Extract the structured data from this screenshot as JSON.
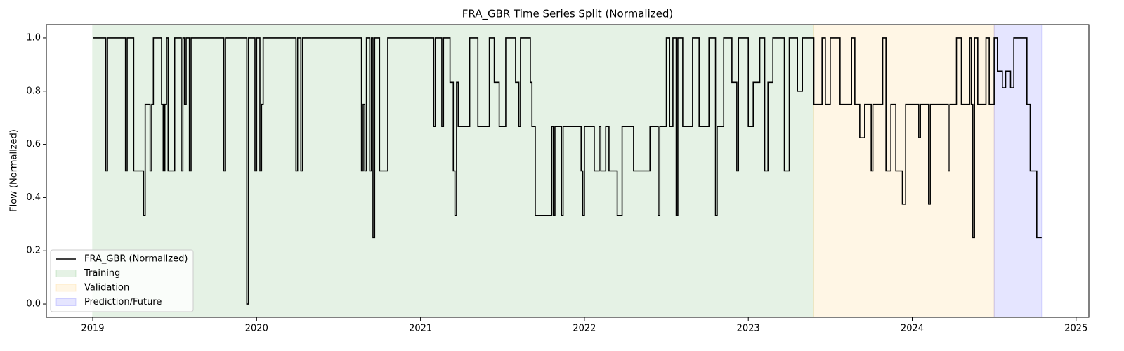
{
  "chart_data": {
    "type": "line",
    "title": "FRA_GBR Time Series Split (Normalized)",
    "ylabel": "Flow (Normalized)",
    "drawstyle": "steps-post",
    "xlim": [
      2018.717,
      2025.078
    ],
    "xticks": [
      2019,
      2020,
      2021,
      2022,
      2023,
      2024,
      2025
    ],
    "ylim": [
      -0.05,
      1.05
    ],
    "yticks": [
      {
        "value": 0,
        "label": "0.0"
      },
      {
        "value": 0.2,
        "label": "0.2"
      },
      {
        "value": 0.4,
        "label": "0.4"
      },
      {
        "value": 0.6,
        "label": "0.6"
      },
      {
        "value": 0.8,
        "label": "0.8"
      },
      {
        "value": 1,
        "label": "1.0"
      }
    ],
    "legend": "lower left",
    "regions": [
      {
        "name": "Training",
        "start": 2019.0,
        "end": 2023.398,
        "color": "#008000",
        "alpha": 0.1
      },
      {
        "name": "Validation",
        "start": 2023.398,
        "end": 2024.5,
        "color": "#ffa500",
        "alpha": 0.1
      },
      {
        "name": "Prediction/Future",
        "start": 2024.5,
        "end": 2024.79,
        "color": "#0000ff",
        "alpha": 0.1
      }
    ],
    "series": [
      {
        "name": "FRA_GBR (Normalized)",
        "color": "#000000",
        "x": [
          2019.0,
          2019.08,
          2019.09,
          2019.2,
          2019.21,
          2019.25,
          2019.31,
          2019.32,
          2019.35,
          2019.36,
          2019.37,
          2019.42,
          2019.43,
          2019.44,
          2019.45,
          2019.46,
          2019.5,
          2019.54,
          2019.55,
          2019.56,
          2019.57,
          2019.59,
          2019.6,
          2019.8,
          2019.81,
          2019.94,
          2019.95,
          2019.99,
          2020.0,
          2020.02,
          2020.03,
          2020.04,
          2020.24,
          2020.25,
          2020.27,
          2020.28,
          2020.64,
          2020.65,
          2020.66,
          2020.67,
          2020.69,
          2020.7,
          2020.71,
          2020.72,
          2020.75,
          2020.8,
          2021.08,
          2021.09,
          2021.13,
          2021.14,
          2021.18,
          2021.2,
          2021.21,
          2021.22,
          2021.23,
          2021.3,
          2021.35,
          2021.42,
          2021.45,
          2021.48,
          2021.52,
          2021.58,
          2021.6,
          2021.61,
          2021.67,
          2021.68,
          2021.7,
          2021.8,
          2021.81,
          2021.82,
          2021.86,
          2021.87,
          2021.98,
          2021.99,
          2022.0,
          2022.06,
          2022.09,
          2022.1,
          2022.13,
          2022.15,
          2022.2,
          2022.23,
          2022.3,
          2022.4,
          2022.45,
          2022.46,
          2022.5,
          2022.52,
          2022.54,
          2022.56,
          2022.57,
          2022.6,
          2022.66,
          2022.7,
          2022.76,
          2022.8,
          2022.81,
          2022.85,
          2022.9,
          2022.93,
          2022.94,
          2023.0,
          2023.03,
          2023.07,
          2023.1,
          2023.12,
          2023.15,
          2023.22,
          2023.25,
          2023.3,
          2023.33,
          2023.4,
          2023.45,
          2023.47,
          2023.5,
          2023.56,
          2023.63,
          2023.65,
          2023.68,
          2023.71,
          2023.75,
          2023.76,
          2023.82,
          2023.84,
          2023.87,
          2023.9,
          2023.94,
          2023.96,
          2024.04,
          2024.05,
          2024.1,
          2024.11,
          2024.22,
          2024.23,
          2024.27,
          2024.3,
          2024.35,
          2024.36,
          2024.37,
          2024.38,
          2024.4,
          2024.45,
          2024.47,
          2024.5,
          2024.52,
          2024.55,
          2024.57,
          2024.6,
          2024.62,
          2024.7,
          2024.72,
          2024.76,
          2024.79
        ],
        "values": [
          1.0,
          0.5,
          1.0,
          0.5,
          1.0,
          0.5,
          0.333,
          0.75,
          0.5,
          0.75,
          1.0,
          0.75,
          0.5,
          0.75,
          1.0,
          0.5,
          1.0,
          0.5,
          1.0,
          0.75,
          1.0,
          0.5,
          1.0,
          0.5,
          1.0,
          0.0,
          1.0,
          0.5,
          1.0,
          0.5,
          0.75,
          1.0,
          0.5,
          1.0,
          0.5,
          1.0,
          0.5,
          0.75,
          0.5,
          1.0,
          0.5,
          1.0,
          0.25,
          1.0,
          0.5,
          1.0,
          0.667,
          1.0,
          0.667,
          1.0,
          0.833,
          0.5,
          0.333,
          0.833,
          0.667,
          1.0,
          0.667,
          1.0,
          0.833,
          0.667,
          1.0,
          0.833,
          0.667,
          1.0,
          0.833,
          0.667,
          0.333,
          0.667,
          0.333,
          0.667,
          0.333,
          0.667,
          0.5,
          0.333,
          0.667,
          0.5,
          0.667,
          0.5,
          0.667,
          0.5,
          0.333,
          0.667,
          0.5,
          0.667,
          0.333,
          0.667,
          1.0,
          0.667,
          1.0,
          0.333,
          1.0,
          0.667,
          1.0,
          0.667,
          1.0,
          0.333,
          0.667,
          1.0,
          0.833,
          0.5,
          1.0,
          0.667,
          0.833,
          1.0,
          0.5,
          0.833,
          1.0,
          0.5,
          1.0,
          0.8,
          1.0,
          0.75,
          1.0,
          0.75,
          1.0,
          0.75,
          1.0,
          0.75,
          0.625,
          0.75,
          0.5,
          0.75,
          1.0,
          0.5,
          0.75,
          0.5,
          0.375,
          0.75,
          0.625,
          0.75,
          0.375,
          0.75,
          0.5,
          0.75,
          1.0,
          0.75,
          1.0,
          0.75,
          0.25,
          1.0,
          0.75,
          1.0,
          0.75,
          1.0,
          0.875,
          0.8125,
          0.875,
          0.8125,
          1.0,
          0.75,
          0.5,
          0.25,
          0.25
        ]
      }
    ]
  }
}
